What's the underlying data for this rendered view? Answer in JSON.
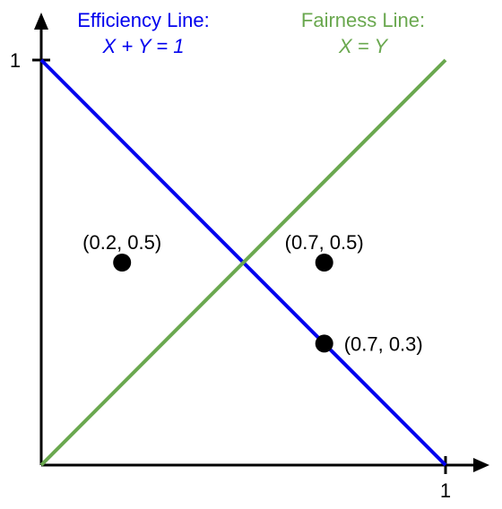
{
  "chart_data": {
    "type": "line",
    "xlim": [
      0,
      1
    ],
    "ylim": [
      0,
      1
    ],
    "grid": false,
    "x_ticks": [
      {
        "value": 1,
        "label": "1"
      }
    ],
    "y_ticks": [
      {
        "value": 1,
        "label": "1"
      }
    ],
    "series": [
      {
        "name": "Efficiency Line:",
        "equation": "X + Y = 1",
        "color": "#0000ee",
        "x": [
          0,
          1
        ],
        "y": [
          1,
          0
        ]
      },
      {
        "name": "Fairness Line:",
        "equation": "X = Y",
        "color": "#6aa84f",
        "x": [
          0,
          1
        ],
        "y": [
          0,
          1
        ]
      }
    ],
    "points": [
      {
        "x": 0.2,
        "y": 0.5,
        "label": "(0.2, 0.5)",
        "label_position": "above"
      },
      {
        "x": 0.7,
        "y": 0.5,
        "label": "(0.7, 0.5)",
        "label_position": "above"
      },
      {
        "x": 0.7,
        "y": 0.3,
        "label": "(0.7, 0.3)",
        "label_position": "right"
      }
    ],
    "point_color": "#000000",
    "axis_color": "#000000"
  }
}
